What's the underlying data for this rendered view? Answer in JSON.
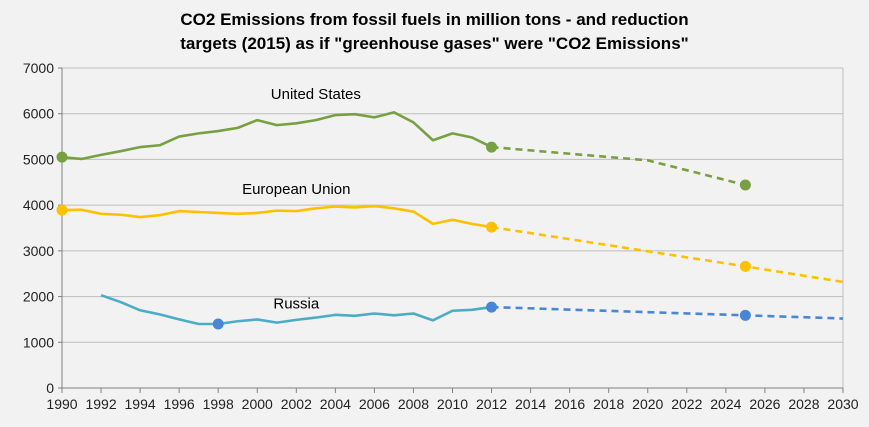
{
  "chart_data": {
    "type": "line",
    "title_line1": "CO2 Emissions from fossil fuels in million tons - and reduction",
    "title_line2": "targets (2015) as if \"greenhouse gases\" were \"CO2 Emissions\"",
    "xlim": [
      1990,
      2030
    ],
    "ylim": [
      0,
      7000
    ],
    "x_ticks": [
      1990,
      1992,
      1994,
      1996,
      1998,
      2000,
      2002,
      2004,
      2006,
      2008,
      2010,
      2012,
      2014,
      2016,
      2018,
      2020,
      2022,
      2024,
      2026,
      2028,
      2030
    ],
    "y_ticks": [
      0,
      1000,
      2000,
      3000,
      4000,
      5000,
      6000,
      7000
    ],
    "grid": true,
    "series": [
      {
        "name": "United States",
        "color": "#77a043",
        "actual": {
          "x": [
            1990,
            1991,
            1992,
            1993,
            1994,
            1995,
            1996,
            1997,
            1998,
            1999,
            2000,
            2001,
            2002,
            2003,
            2004,
            2005,
            2006,
            2007,
            2008,
            2009,
            2010,
            2011,
            2012
          ],
          "y": [
            5050,
            5010,
            5100,
            5180,
            5270,
            5310,
            5500,
            5570,
            5620,
            5690,
            5860,
            5750,
            5790,
            5860,
            5970,
            5990,
            5920,
            6030,
            5810,
            5420,
            5570,
            5480,
            5270
          ]
        },
        "target": {
          "x": [
            2012,
            2020,
            2025
          ],
          "y": [
            5270,
            4980,
            4440
          ]
        },
        "markers": [
          {
            "x": 1990,
            "y": 5050
          },
          {
            "x": 2012,
            "y": 5270
          },
          {
            "x": 2025,
            "y": 4440
          }
        ],
        "label_pos": {
          "x": 2003,
          "y": 6320
        }
      },
      {
        "name": "European Union",
        "color": "#ffc000",
        "actual": {
          "x": [
            1990,
            1991,
            1992,
            1993,
            1994,
            1995,
            1996,
            1997,
            1998,
            1999,
            2000,
            2001,
            2002,
            2003,
            2004,
            2005,
            2006,
            2007,
            2008,
            2009,
            2010,
            2011,
            2012
          ],
          "y": [
            3890,
            3900,
            3810,
            3790,
            3740,
            3780,
            3870,
            3850,
            3830,
            3810,
            3830,
            3880,
            3870,
            3930,
            3970,
            3950,
            3980,
            3930,
            3860,
            3590,
            3680,
            3590,
            3520
          ]
        },
        "target": {
          "x": [
            2012,
            2025,
            2030
          ],
          "y": [
            3520,
            2660,
            2320
          ]
        },
        "markers": [
          {
            "x": 1990,
            "y": 3890
          },
          {
            "x": 2012,
            "y": 3520
          },
          {
            "x": 2025,
            "y": 2660
          }
        ],
        "label_pos": {
          "x": 2002,
          "y": 4240
        }
      },
      {
        "name": "Russia",
        "color": "#4bacc6",
        "marker_color": "#4a86d6",
        "actual": {
          "x": [
            1992,
            1993,
            1994,
            1995,
            1996,
            1997,
            1998,
            1999,
            2000,
            2001,
            2002,
            2003,
            2004,
            2005,
            2006,
            2007,
            2008,
            2009,
            2010,
            2011,
            2012
          ],
          "y": [
            2030,
            1880,
            1700,
            1610,
            1500,
            1400,
            1400,
            1460,
            1500,
            1430,
            1490,
            1540,
            1600,
            1580,
            1630,
            1590,
            1630,
            1480,
            1690,
            1710,
            1770
          ]
        },
        "target": {
          "x": [
            2012,
            2025,
            2030
          ],
          "y": [
            1770,
            1590,
            1520
          ]
        },
        "markers": [
          {
            "x": 1998,
            "y": 1400
          },
          {
            "x": 2012,
            "y": 1770
          },
          {
            "x": 2025,
            "y": 1590
          }
        ],
        "label_pos": {
          "x": 2002,
          "y": 1740
        }
      }
    ]
  }
}
